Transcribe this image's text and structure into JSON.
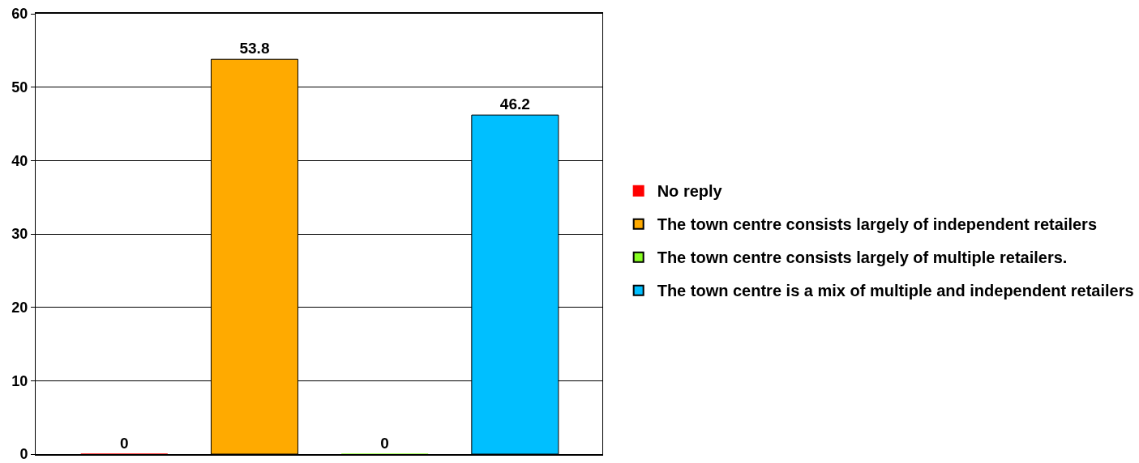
{
  "chart_data": {
    "type": "bar",
    "categories": [
      null,
      null,
      null,
      null
    ],
    "series": [
      {
        "name": "No reply",
        "color": "#ff0000",
        "values": [
          0,
          null,
          null,
          null
        ]
      },
      {
        "name": "The town centre consists largely of independent retailers",
        "color": "#ffaa00",
        "values": [
          null,
          53.8,
          null,
          null
        ]
      },
      {
        "name": "The town centre consists largely of multiple retailers.",
        "color": "#88ff22",
        "values": [
          null,
          null,
          0,
          null
        ]
      },
      {
        "name": "The town centre is a mix of multiple and independent retailers",
        "color": "#00bfff",
        "values": [
          null,
          null,
          null,
          46.2
        ]
      }
    ],
    "ylim": [
      0,
      60
    ],
    "yticks": [
      0,
      10,
      20,
      30,
      40,
      50,
      60
    ],
    "data_labels": true,
    "grid": "y",
    "legend": "right",
    "tick_labels": "y"
  }
}
